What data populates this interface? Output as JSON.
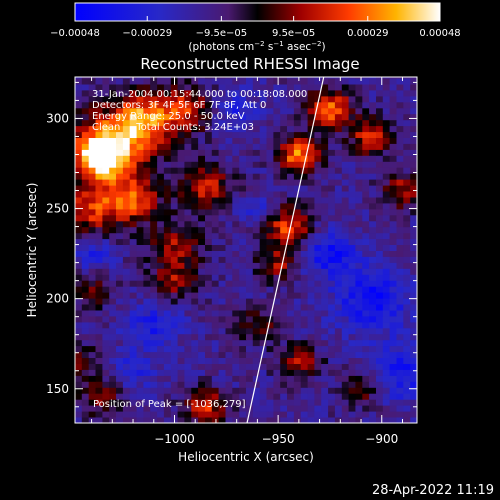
{
  "chart_data": {
    "type": "heatmap",
    "title": "Reconstructed RHESSI Image",
    "xlabel": "Heliocentric X (arcsec)",
    "ylabel": "Heliocentric Y (arcsec)",
    "xlim": [
      -1048,
      -883
    ],
    "ylim": [
      131,
      323
    ],
    "x_ticks": [
      -1000,
      -950,
      -900
    ],
    "x_tick_labels": [
      "−1000",
      "−950",
      "−900"
    ],
    "y_ticks": [
      150,
      200,
      250,
      300
    ],
    "y_tick_labels": [
      "150",
      "200",
      "250",
      "300"
    ],
    "colorbar": {
      "range": [
        -0.00048,
        0.00048
      ],
      "ticks": [
        -0.00048,
        -0.00029,
        -9.5e-05,
        9.5e-05,
        0.00029,
        0.00048
      ],
      "tick_labels": [
        "−0.00048",
        "−0.00029",
        "−9.5e−05",
        "9.5e−05",
        "0.00029",
        "0.00048"
      ],
      "units_prefix": "(photons cm",
      "units_exp1": "−2",
      "units_mid": " s",
      "units_exp2": "−1",
      "units_mid2": " asec",
      "units_exp3": "−2",
      "units_suffix": ")"
    },
    "annotations": [
      "31-Jan-2004 00:15:44.000 to 00:18:08.000",
      "Detectors: 3F 4F 5F 6F 7F 8F, Att 0",
      "Energy Range: 25.0 - 50.0 keV",
      "Clean     Total Counts: 3.24E+03"
    ],
    "peak_label": "Position of Peak = [-1036,279]",
    "peak": [
      -1036,
      279
    ],
    "limb_line": [
      [
        -965,
        131
      ],
      [
        -928,
        323
      ]
    ],
    "grid": false,
    "blobs": [
      {
        "x": -1030,
        "y": 285,
        "v": 0.00042,
        "s": 14
      },
      {
        "x": -1036,
        "y": 279,
        "v": 0.00048,
        "s": 8
      },
      {
        "x": -1015,
        "y": 300,
        "v": 0.00038,
        "s": 10
      },
      {
        "x": -995,
        "y": 305,
        "v": 0.0003,
        "s": 9
      },
      {
        "x": -1040,
        "y": 250,
        "v": 0.00032,
        "s": 10
      },
      {
        "x": -1020,
        "y": 255,
        "v": 0.00034,
        "s": 9
      },
      {
        "x": -985,
        "y": 262,
        "v": 0.0003,
        "s": 9
      },
      {
        "x": -1000,
        "y": 230,
        "v": 0.00024,
        "s": 9
      },
      {
        "x": -940,
        "y": 280,
        "v": 0.00044,
        "s": 7
      },
      {
        "x": -925,
        "y": 305,
        "v": 0.0004,
        "s": 8
      },
      {
        "x": -905,
        "y": 290,
        "v": 0.00034,
        "s": 7
      },
      {
        "x": -890,
        "y": 260,
        "v": 0.00028,
        "s": 7
      },
      {
        "x": -945,
        "y": 240,
        "v": 0.00036,
        "s": 8
      },
      {
        "x": -950,
        "y": 220,
        "v": 0.00024,
        "s": 7
      },
      {
        "x": -1000,
        "y": 210,
        "v": 0.00024,
        "s": 8
      },
      {
        "x": -1040,
        "y": 205,
        "v": 0.00016,
        "s": 8
      },
      {
        "x": -960,
        "y": 185,
        "v": 0.0002,
        "s": 7
      },
      {
        "x": -940,
        "y": 165,
        "v": 0.00026,
        "s": 7
      },
      {
        "x": -910,
        "y": 150,
        "v": 0.0002,
        "s": 7
      },
      {
        "x": -985,
        "y": 140,
        "v": 0.00032,
        "s": 7
      },
      {
        "x": -1035,
        "y": 145,
        "v": 0.0002,
        "s": 8
      },
      {
        "x": -1045,
        "y": 165,
        "v": 0.00016,
        "s": 7
      },
      {
        "x": -1010,
        "y": 185,
        "v": -0.0002,
        "s": 9
      },
      {
        "x": -905,
        "y": 200,
        "v": -0.00028,
        "s": 12
      },
      {
        "x": -890,
        "y": 160,
        "v": -0.00024,
        "s": 11
      },
      {
        "x": -925,
        "y": 225,
        "v": -0.00026,
        "s": 9
      },
      {
        "x": -1040,
        "y": 225,
        "v": -0.00018,
        "s": 7
      },
      {
        "x": -970,
        "y": 305,
        "v": -0.00016,
        "s": 7
      },
      {
        "x": -960,
        "y": 250,
        "v": -0.00014,
        "s": 6
      },
      {
        "x": -1020,
        "y": 160,
        "v": -0.00016,
        "s": 7
      }
    ]
  },
  "footer": {
    "timestamp": "28-Apr-2022 11:19"
  }
}
